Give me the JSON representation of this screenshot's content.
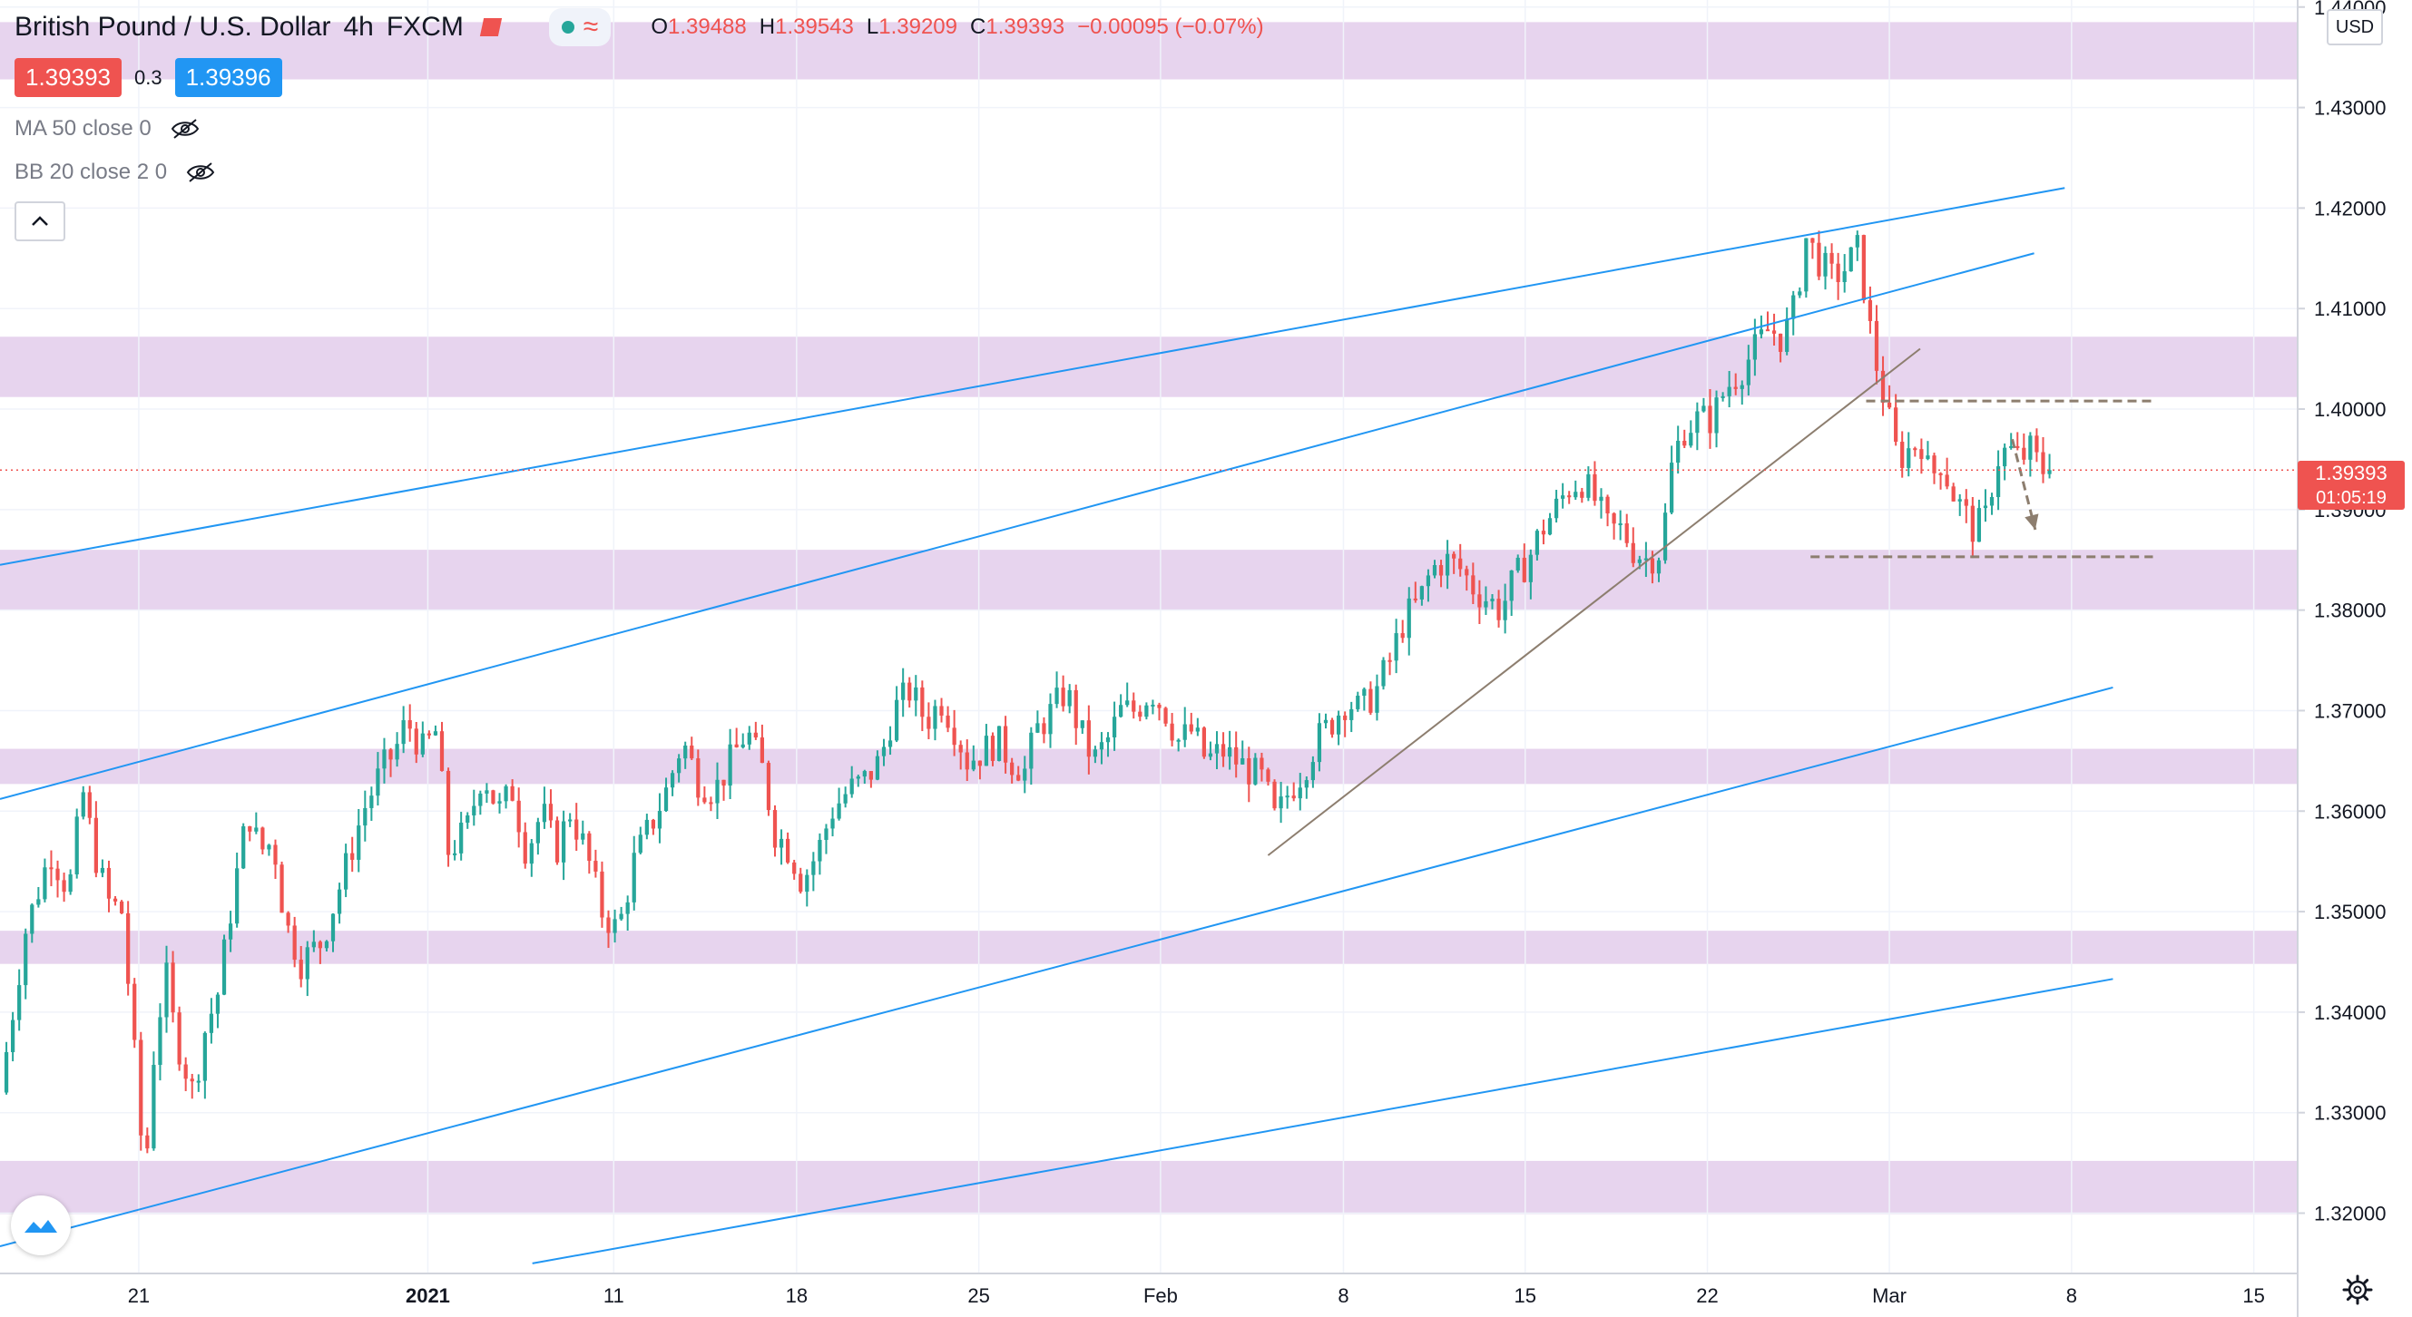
{
  "header": {
    "symbol": "British Pound / U.S. Dollar",
    "interval": "4h",
    "exchange": "FXCM",
    "ohlc": {
      "o_label": "O",
      "o_value": "1.39488",
      "h_label": "H",
      "h_value": "1.39543",
      "l_label": "L",
      "l_value": "1.39209",
      "c_label": "C",
      "c_value": "1.39393",
      "change": "−0.00095 (−0.07%)"
    }
  },
  "quote": {
    "bid": "1.39393",
    "spread": "0.3",
    "ask": "1.39396"
  },
  "indicators": [
    {
      "label": "MA 50 close 0"
    },
    {
      "label": "BB 20 close 2 0"
    }
  ],
  "currency_label": "USD",
  "last_price": {
    "price": "1.39393",
    "countdown": "01:05:19"
  },
  "colors": {
    "up": "#26a69a",
    "down": "#ef5350",
    "zone": "#e7d4ee",
    "channel": "#2196f3",
    "trendline": "#8d7e6f",
    "dashed": "#8d7e6f",
    "price_line": "#ef5350"
  },
  "icons": [
    "eye-off-icon",
    "chevron-up-icon",
    "tradingview-logo-icon",
    "gear-icon"
  ],
  "chart_data": {
    "type": "candlestick",
    "title": "British Pound / U.S. Dollar",
    "ylim": [
      1.314,
      1.4407
    ],
    "y_ticks": [
      "1.32000",
      "1.33000",
      "1.34000",
      "1.35000",
      "1.36000",
      "1.37000",
      "1.38000",
      "1.39000",
      "1.40000",
      "1.41000",
      "1.42000",
      "1.43000",
      "1.44000"
    ],
    "x_ticks": [
      {
        "label": "21",
        "x": 0.0604
      },
      {
        "label": "2021",
        "x": 0.1862
      },
      {
        "label": "11",
        "x": 0.2671
      },
      {
        "label": "18",
        "x": 0.3467
      },
      {
        "label": "25",
        "x": 0.426
      },
      {
        "label": "Feb",
        "x": 0.5051
      },
      {
        "label": "8",
        "x": 0.5847
      },
      {
        "label": "15",
        "x": 0.6638
      },
      {
        "label": "22",
        "x": 0.7431
      },
      {
        "label": "Mar",
        "x": 0.8223
      },
      {
        "label": "8",
        "x": 0.9016
      },
      {
        "label": "15",
        "x": 0.9809
      }
    ],
    "zones": [
      [
        1.4328,
        1.4385
      ],
      [
        1.4012,
        1.4072
      ],
      [
        1.38,
        1.386
      ],
      [
        1.3627,
        1.3662
      ],
      [
        1.3448,
        1.3481
      ],
      [
        1.3199,
        1.3252
      ]
    ],
    "channel_lines": [
      {
        "from": [
          0.0,
          1.3845
        ],
        "to": [
          0.8986,
          1.422
        ]
      },
      {
        "from": [
          0.0,
          1.3612
        ],
        "to": [
          0.8853,
          1.4155
        ]
      },
      {
        "from": [
          0.0,
          1.3167
        ],
        "to": [
          0.9196,
          1.3723
        ]
      },
      {
        "from": [
          0.2317,
          1.315
        ],
        "to": [
          0.9196,
          1.3433
        ]
      }
    ],
    "trendline": {
      "from": [
        0.5519,
        1.3556
      ],
      "to": [
        0.8357,
        1.406
      ]
    },
    "dashed_levels": [
      {
        "from": 0.8122,
        "to": 0.937,
        "y": 1.4008
      },
      {
        "from": 0.788,
        "to": 0.937,
        "y": 1.3853
      }
    ],
    "arrow": {
      "from": [
        0.8758,
        1.397
      ],
      "to": [
        0.8858,
        1.388
      ]
    },
    "last_price": 1.39393,
    "candle_points": [
      [
        0.0,
        1.332
      ],
      [
        0.011,
        1.348
      ],
      [
        0.022,
        1.356
      ],
      [
        0.03,
        1.352
      ],
      [
        0.036,
        1.362
      ],
      [
        0.041,
        1.356
      ],
      [
        0.047,
        1.351
      ],
      [
        0.053,
        1.35
      ],
      [
        0.057,
        1.34
      ],
      [
        0.063,
        1.323
      ],
      [
        0.067,
        1.336
      ],
      [
        0.072,
        1.344
      ],
      [
        0.076,
        1.338
      ],
      [
        0.084,
        1.332
      ],
      [
        0.089,
        1.338
      ],
      [
        0.095,
        1.342
      ],
      [
        0.101,
        1.351
      ],
      [
        0.108,
        1.36
      ],
      [
        0.113,
        1.356
      ],
      [
        0.119,
        1.357
      ],
      [
        0.124,
        1.349
      ],
      [
        0.131,
        1.345
      ],
      [
        0.14,
        1.347
      ],
      [
        0.15,
        1.354
      ],
      [
        0.158,
        1.36
      ],
      [
        0.166,
        1.364
      ],
      [
        0.172,
        1.366
      ],
      [
        0.177,
        1.369
      ],
      [
        0.184,
        1.366
      ],
      [
        0.19,
        1.368
      ],
      [
        0.195,
        1.356
      ],
      [
        0.203,
        1.358
      ],
      [
        0.21,
        1.364
      ],
      [
        0.217,
        1.36
      ],
      [
        0.223,
        1.362
      ],
      [
        0.229,
        1.356
      ],
      [
        0.236,
        1.36
      ],
      [
        0.242,
        1.356
      ],
      [
        0.248,
        1.36
      ],
      [
        0.255,
        1.356
      ],
      [
        0.262,
        1.35
      ],
      [
        0.269,
        1.348
      ],
      [
        0.276,
        1.355
      ],
      [
        0.284,
        1.359
      ],
      [
        0.29,
        1.362
      ],
      [
        0.297,
        1.367
      ],
      [
        0.304,
        1.363
      ],
      [
        0.311,
        1.362
      ],
      [
        0.318,
        1.365
      ],
      [
        0.325,
        1.368
      ],
      [
        0.332,
        1.364
      ],
      [
        0.337,
        1.358
      ],
      [
        0.344,
        1.356
      ],
      [
        0.349,
        1.353
      ],
      [
        0.356,
        1.356
      ],
      [
        0.362,
        1.36
      ],
      [
        0.369,
        1.362
      ],
      [
        0.376,
        1.363
      ],
      [
        0.383,
        1.365
      ],
      [
        0.389,
        1.37
      ],
      [
        0.396,
        1.372
      ],
      [
        0.403,
        1.369
      ],
      [
        0.41,
        1.371
      ],
      [
        0.416,
        1.368
      ],
      [
        0.421,
        1.365
      ],
      [
        0.428,
        1.366
      ],
      [
        0.434,
        1.367
      ],
      [
        0.44,
        1.365
      ],
      [
        0.446,
        1.364
      ],
      [
        0.451,
        1.368
      ],
      [
        0.458,
        1.37
      ],
      [
        0.464,
        1.372
      ],
      [
        0.47,
        1.368
      ],
      [
        0.476,
        1.365
      ],
      [
        0.482,
        1.367
      ],
      [
        0.488,
        1.37
      ],
      [
        0.494,
        1.37
      ],
      [
        0.501,
        1.372
      ],
      [
        0.507,
        1.37
      ],
      [
        0.513,
        1.367
      ],
      [
        0.519,
        1.368
      ],
      [
        0.525,
        1.365
      ],
      [
        0.532,
        1.366
      ],
      [
        0.538,
        1.365
      ],
      [
        0.544,
        1.364
      ],
      [
        0.55,
        1.363
      ],
      [
        0.555,
        1.359
      ],
      [
        0.561,
        1.362
      ],
      [
        0.567,
        1.364
      ],
      [
        0.573,
        1.367
      ],
      [
        0.58,
        1.369
      ],
      [
        0.586,
        1.371
      ],
      [
        0.592,
        1.37
      ],
      [
        0.599,
        1.372
      ],
      [
        0.605,
        1.375
      ],
      [
        0.611,
        1.379
      ],
      [
        0.618,
        1.381
      ],
      [
        0.623,
        1.384
      ],
      [
        0.629,
        1.385
      ],
      [
        0.636,
        1.384
      ],
      [
        0.642,
        1.382
      ],
      [
        0.648,
        1.381
      ],
      [
        0.653,
        1.38
      ],
      [
        0.659,
        1.383
      ],
      [
        0.665,
        1.385
      ],
      [
        0.671,
        1.388
      ],
      [
        0.677,
        1.39
      ],
      [
        0.682,
        1.392
      ],
      [
        0.688,
        1.393
      ],
      [
        0.694,
        1.391
      ],
      [
        0.7,
        1.388
      ],
      [
        0.706,
        1.388
      ],
      [
        0.711,
        1.386
      ],
      [
        0.717,
        1.385
      ],
      [
        0.723,
        1.386
      ],
      [
        0.728,
        1.395
      ],
      [
        0.733,
        1.398
      ],
      [
        0.739,
        1.399
      ],
      [
        0.745,
        1.399
      ],
      [
        0.751,
        1.402
      ],
      [
        0.758,
        1.404
      ],
      [
        0.764,
        1.406
      ],
      [
        0.77,
        1.408
      ],
      [
        0.776,
        1.407
      ],
      [
        0.781,
        1.41
      ],
      [
        0.786,
        1.417
      ],
      [
        0.791,
        1.415
      ],
      [
        0.797,
        1.413
      ],
      [
        0.803,
        1.414
      ],
      [
        0.809,
        1.416
      ],
      [
        0.813,
        1.409
      ],
      [
        0.817,
        1.404
      ],
      [
        0.822,
        1.399
      ],
      [
        0.826,
        1.395
      ],
      [
        0.831,
        1.396
      ],
      [
        0.836,
        1.397
      ],
      [
        0.84,
        1.393
      ],
      [
        0.845,
        1.395
      ],
      [
        0.849,
        1.392
      ],
      [
        0.854,
        1.39
      ],
      [
        0.859,
        1.388
      ],
      [
        0.864,
        1.389
      ],
      [
        0.869,
        1.395
      ],
      [
        0.874,
        1.396
      ],
      [
        0.879,
        1.395
      ],
      [
        0.884,
        1.396
      ],
      [
        0.888,
        1.394
      ],
      [
        0.892,
        1.394
      ]
    ]
  }
}
